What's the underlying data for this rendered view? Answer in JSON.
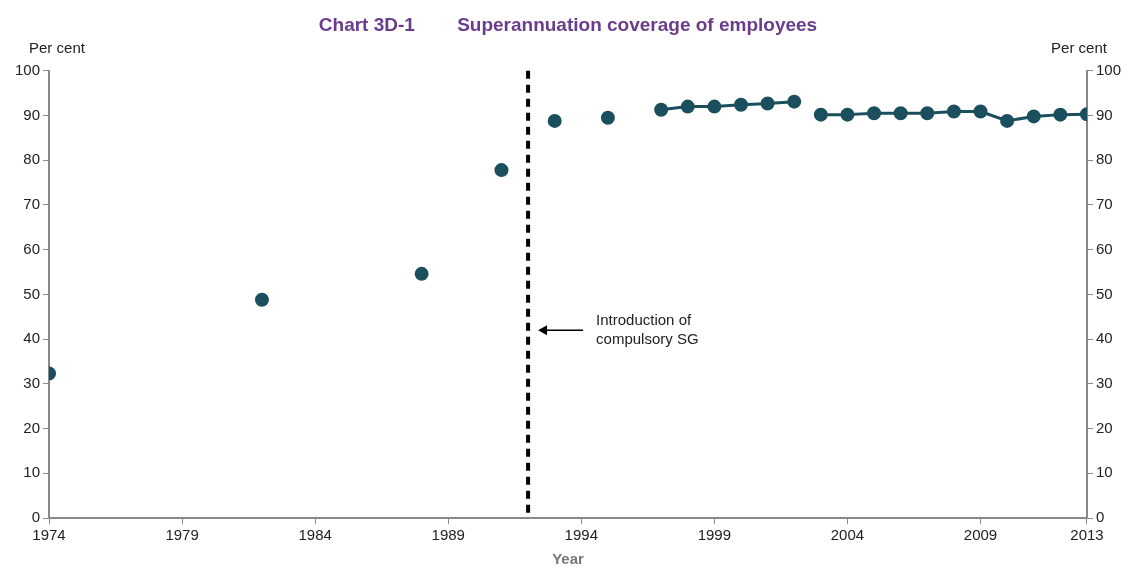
{
  "chart_data": {
    "type": "line",
    "title": "Chart 3D-1        Superannuation coverage of employees",
    "xlabel": "Year",
    "ylabel": "Per cent",
    "y2label": "Per cent",
    "series": [
      {
        "color": "#1b4f5e",
        "x": [
          1974,
          1975,
          1976,
          1977,
          1978,
          1979,
          1980,
          1981,
          1982,
          1983,
          1984,
          1985,
          1986,
          1987,
          1988,
          1989,
          1990,
          1991,
          1992,
          1993,
          1994,
          1995,
          1996,
          1997,
          1998,
          1999,
          2000,
          2001,
          2002
        ],
        "values": [
          32.3,
          null,
          null,
          null,
          null,
          null,
          null,
          null,
          48.8,
          null,
          null,
          null,
          null,
          null,
          54.6,
          null,
          null,
          77.8,
          null,
          88.8,
          null,
          89.5,
          null,
          91.3,
          92,
          92,
          92.4,
          92.7,
          93.1
        ]
      },
      {
        "color": "#1b4f5e",
        "x": [
          2003,
          2004,
          2005,
          2006,
          2007,
          2008,
          2009,
          2010,
          2011,
          2012,
          2013
        ],
        "values": [
          90.2,
          90.2,
          90.5,
          90.5,
          90.5,
          90.9,
          90.9,
          88.8,
          89.8,
          90.2,
          90.3
        ]
      }
    ],
    "xlim": [
      1974,
      2013
    ],
    "xticks": [
      1974,
      1979,
      1984,
      1989,
      1994,
      1999,
      2004,
      2009,
      2013
    ],
    "ylim": [
      0,
      100
    ],
    "yticks": [
      0,
      10,
      20,
      30,
      40,
      50,
      60,
      70,
      80,
      90,
      100
    ],
    "y2lim": [
      0,
      100
    ],
    "y2ticks": [
      0,
      10,
      20,
      30,
      40,
      50,
      60,
      70,
      80,
      90,
      100
    ],
    "ref_lines": [
      {
        "axis": "x",
        "value": 1992,
        "color": "#000000",
        "line_style": "dashed"
      }
    ],
    "annotations": [
      "Introduction of compulsory SG"
    ],
    "marker": "circle",
    "line_style": "solid",
    "grid": false,
    "legend": false
  }
}
